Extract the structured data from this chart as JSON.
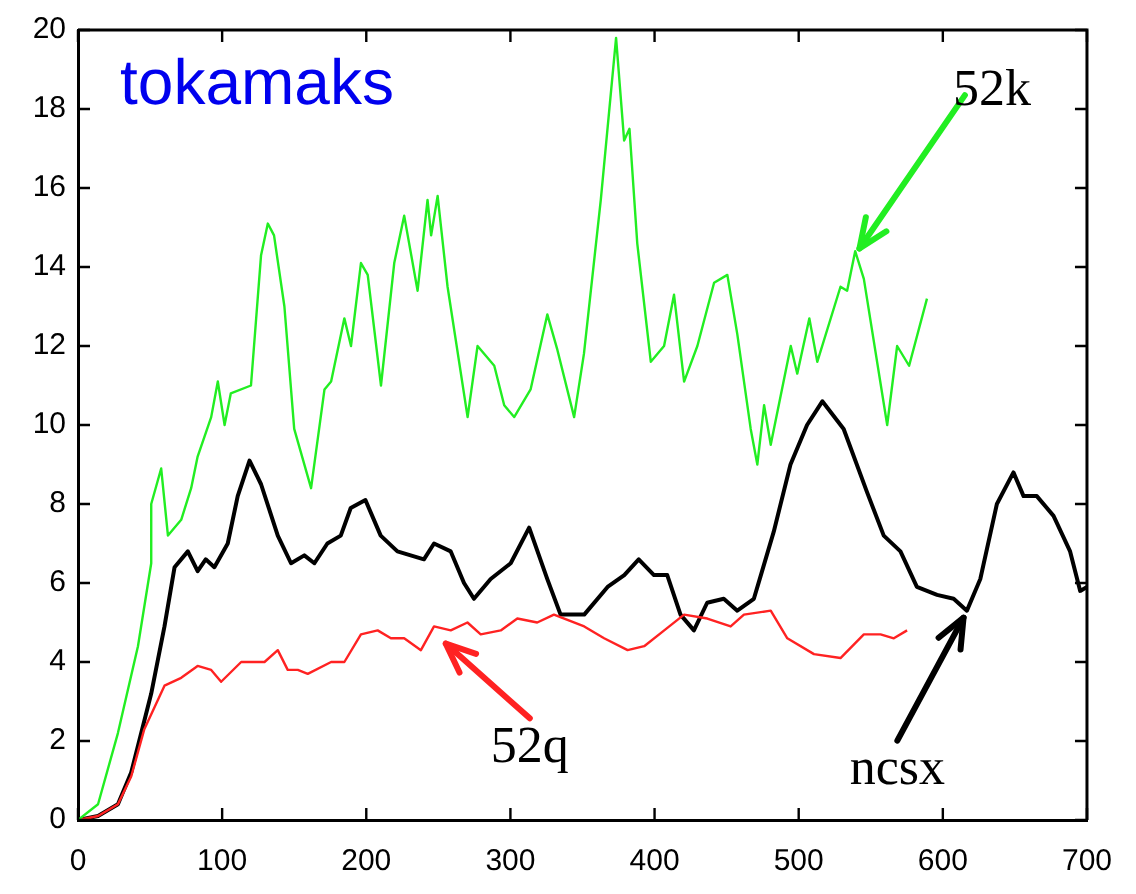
{
  "chart_data": {
    "type": "line",
    "title": "tokamaks",
    "xlim": [
      0,
      700
    ],
    "ylim": [
      0,
      20
    ],
    "xticks": [
      0,
      100,
      200,
      300,
      400,
      500,
      600,
      700
    ],
    "yticks": [
      0,
      2,
      4,
      6,
      8,
      10,
      12,
      14,
      16,
      18,
      20
    ],
    "marker": "none",
    "legend": false,
    "annotations": [
      {
        "text": "52k",
        "x": 539,
        "y": 14.3
      },
      {
        "text": "52q",
        "x": 251,
        "y": 4.6
      },
      {
        "text": "ncsx",
        "x": 617,
        "y": 5.3
      }
    ],
    "series": [
      {
        "color": "#22ee22",
        "x": [
          0,
          13.9,
          27.7,
          41.6,
          50.8,
          50.8,
          57.7,
          62.4,
          71.6,
          78.5,
          83,
          92.4,
          97,
          101.7,
          106,
          120,
          127,
          131.7,
          136,
          143.2,
          150,
          161.7,
          171,
          175.6,
          184.8,
          189.4,
          196.3,
          201,
          210.2,
          219.4,
          226.3,
          235.6,
          242.5,
          245,
          249.5,
          256.4,
          270.3,
          277.2,
          288.8,
          295.7,
          302.6,
          314,
          325.6,
          332.6,
          344.2,
          351,
          362.7,
          373.3,
          378.9,
          382.6,
          388,
          397.4,
          406.6,
          413.5,
          420.5,
          429.7,
          441.3,
          450.5,
          457.4,
          466.7,
          471.3,
          476,
          480.6,
          494.5,
          499,
          507.4,
          512.9,
          529,
          533.6,
          539.2,
          545.2,
          561.4,
          568.3,
          576.6,
          589
        ],
        "values": [
          0,
          0.4,
          2.2,
          4.4,
          6.5,
          8,
          8.9,
          7.2,
          7.6,
          8.4,
          9.2,
          10.2,
          11.1,
          10,
          10.8,
          11,
          14.3,
          15.1,
          14.8,
          13,
          9.9,
          8.4,
          10.9,
          11.1,
          12.7,
          12,
          14.1,
          13.8,
          11,
          14.1,
          15.3,
          13.4,
          15.7,
          14.8,
          15.8,
          13.5,
          10.2,
          12,
          11.5,
          10.5,
          10.2,
          10.9,
          12.8,
          11.9,
          10.2,
          11.8,
          15.7,
          19.8,
          17.2,
          17.5,
          14.6,
          11.6,
          12,
          13.3,
          11.1,
          12,
          13.6,
          13.8,
          12.3,
          9.9,
          9,
          10.5,
          9.5,
          12,
          11.3,
          12.7,
          11.6,
          13.5,
          13.4,
          14.4,
          13.7,
          10,
          12,
          11.5,
          13.2
        ]
      },
      {
        "color": "#ff2222",
        "x": [
          0,
          13.9,
          27.7,
          36.9,
          46,
          60,
          71.6,
          83,
          92.4,
          99.3,
          113.2,
          129.4,
          138.6,
          145.5,
          152.5,
          159.4,
          175.6,
          184.8,
          196.3,
          207.9,
          217.1,
          226.3,
          237.9,
          247,
          258.6,
          270.2,
          279.4,
          293.3,
          304.8,
          318.6,
          330.2,
          351.2,
          365,
          381.3,
          392.8,
          406.7,
          420.5,
          436.6,
          452.8,
          462,
          480.6,
          492.1,
          510.6,
          529,
          545.2,
          556.8,
          566,
          575.2
        ],
        "values": [
          0,
          0.1,
          0.4,
          1.1,
          2.3,
          3.4,
          3.6,
          3.9,
          3.8,
          3.5,
          4,
          4,
          4.3,
          3.8,
          3.8,
          3.7,
          4,
          4,
          4.7,
          4.8,
          4.6,
          4.6,
          4.3,
          4.9,
          4.8,
          5,
          4.7,
          4.8,
          5.1,
          5,
          5.2,
          4.9,
          4.6,
          4.3,
          4.4,
          4.8,
          5.2,
          5.1,
          4.9,
          5.2,
          5.3,
          4.6,
          4.2,
          4.1,
          4.7,
          4.7,
          4.6,
          4.8
        ]
      },
      {
        "color": "#000000",
        "x": [
          0,
          13.9,
          27.7,
          36.9,
          50.8,
          60,
          67,
          76.2,
          83,
          88.6,
          94.6,
          103.9,
          110.8,
          119,
          127,
          138.6,
          147.8,
          157,
          164,
          173,
          182.3,
          189.2,
          199.4,
          210,
          221.6,
          240,
          247,
          258.6,
          267.8,
          274.7,
          286.3,
          300.2,
          313,
          325.6,
          334.8,
          351.2,
          367.4,
          379,
          389,
          399.6,
          408.8,
          418,
          427.3,
          436.5,
          448,
          457.4,
          468.9,
          482.7,
          494.3,
          505.8,
          516.4,
          531.2,
          547.4,
          559,
          570.6,
          582,
          596,
          607.5,
          616.7,
          626,
          637.5,
          649,
          656,
          665.2,
          676.8,
          688.3,
          695.3,
          700
        ],
        "values": [
          0,
          0.1,
          0.4,
          1.2,
          3.2,
          4.9,
          6.4,
          6.8,
          6.3,
          6.6,
          6.4,
          7,
          8.2,
          9.1,
          8.5,
          7.2,
          6.5,
          6.7,
          6.5,
          7,
          7.2,
          7.9,
          8.1,
          7.2,
          6.8,
          6.6,
          7,
          6.8,
          6,
          5.6,
          6.1,
          6.5,
          7.4,
          6.1,
          5.2,
          5.2,
          5.9,
          6.2,
          6.6,
          6.2,
          6.2,
          5.2,
          4.8,
          5.5,
          5.6,
          5.3,
          5.6,
          7.3,
          9,
          10,
          10.6,
          9.9,
          8.3,
          7.2,
          6.8,
          5.9,
          5.7,
          5.6,
          5.3,
          6.1,
          8,
          8.8,
          8.2,
          8.2,
          7.7,
          6.8,
          5.8,
          5.9
        ]
      }
    ]
  }
}
